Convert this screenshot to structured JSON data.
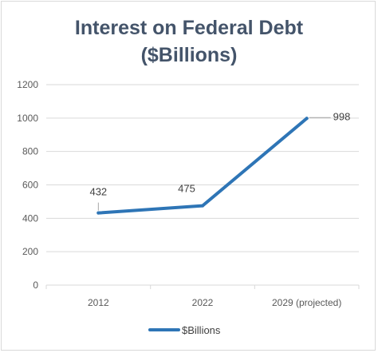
{
  "chart_data": {
    "type": "line",
    "title_line1": "Interest on Federal Debt",
    "title_line2": "($Billions)",
    "categories": [
      "2012",
      "2022",
      "2029 (projected)"
    ],
    "series": [
      {
        "name": "$Billions",
        "values": [
          432,
          475,
          998
        ],
        "color": "#2e75b6"
      }
    ],
    "data_labels": [
      "432",
      "475",
      "998"
    ],
    "y_ticks": [
      "0",
      "200",
      "400",
      "600",
      "800",
      "1000",
      "1200"
    ],
    "ylim": [
      0,
      1200
    ],
    "grid": true,
    "legend": "bottom",
    "gridline_color": "#d9d9d9",
    "leader_color": "#a6a6a6"
  }
}
